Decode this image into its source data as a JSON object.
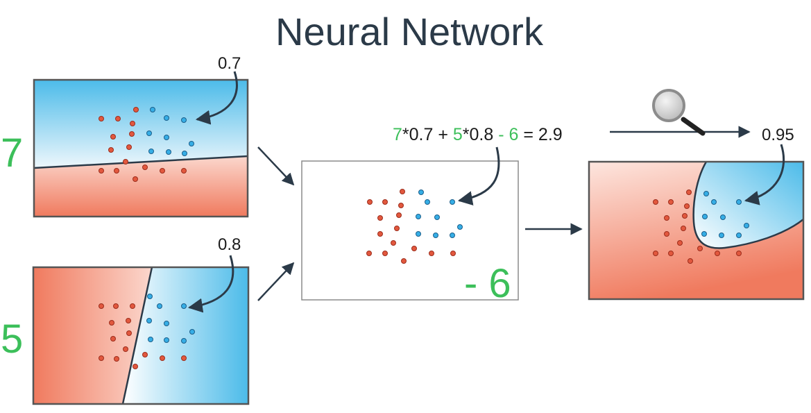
{
  "title": "Neural Network",
  "colors": {
    "green": "#3cbf5a",
    "red_region": "#f07a5e",
    "blue_region": "#4cbbe9",
    "point_red": "#e2583e",
    "point_blue": "#36aee6",
    "arrow": "#2b3a48"
  },
  "top_model": {
    "input_value": "7",
    "weight_label": "0.7"
  },
  "bottom_model": {
    "input_value": "5",
    "weight_label": "0.8"
  },
  "combine": {
    "bias_label": "- 6"
  },
  "equation": {
    "w1": "7",
    "t1": "*0.7 + ",
    "w2": "5",
    "t2": "*0.8 ",
    "b": "- 6",
    "t3": " = 2.9"
  },
  "output": {
    "value_label": "0.95"
  },
  "icons": [
    "magnifier-icon"
  ]
}
